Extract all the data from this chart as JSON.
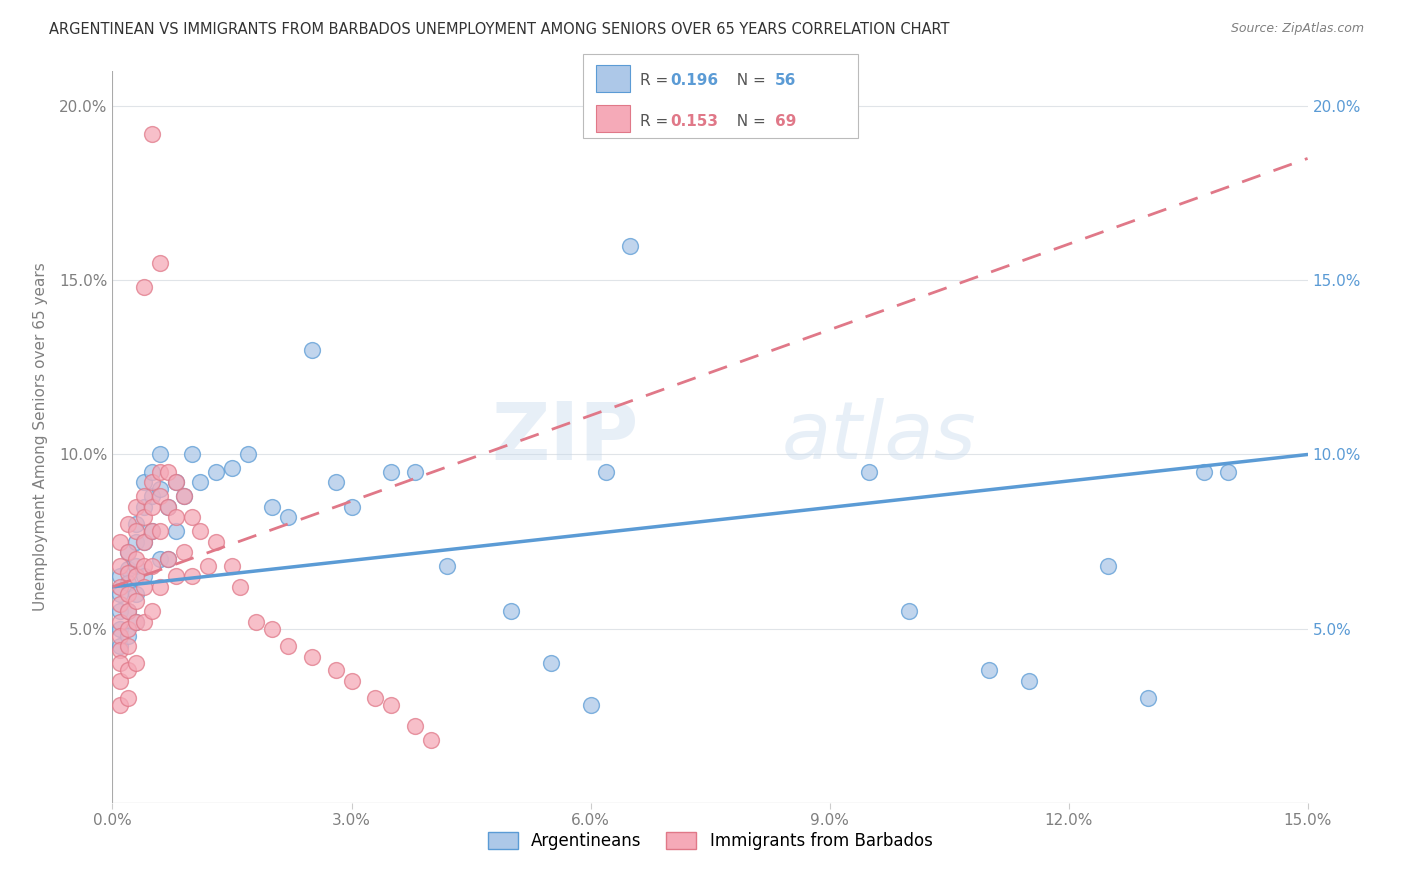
{
  "title": "ARGENTINEAN VS IMMIGRANTS FROM BARBADOS UNEMPLOYMENT AMONG SENIORS OVER 65 YEARS CORRELATION CHART",
  "source": "Source: ZipAtlas.com",
  "ylabel": "Unemployment Among Seniors over 65 years",
  "xlabel": "",
  "xlim": [
    0,
    0.15
  ],
  "ylim": [
    0,
    0.21
  ],
  "xtick_vals": [
    0.0,
    0.03,
    0.06,
    0.09,
    0.12,
    0.15
  ],
  "xtick_labels": [
    "0.0%",
    "3.0%",
    "6.0%",
    "9.0%",
    "12.0%",
    "15.0%"
  ],
  "ytick_vals": [
    0.0,
    0.05,
    0.1,
    0.15,
    0.2
  ],
  "ytick_labels_left": [
    "",
    "5.0%",
    "10.0%",
    "15.0%",
    "20.0%"
  ],
  "ytick_labels_right": [
    "",
    "5.0%",
    "10.0%",
    "15.0%",
    "20.0%"
  ],
  "legend_r_blue": "0.196",
  "legend_n_blue": "56",
  "legend_r_pink": "0.153",
  "legend_n_pink": "69",
  "legend_label_blue": "Argentineans",
  "legend_label_pink": "Immigrants from Barbados",
  "color_blue": "#adc8e8",
  "color_blue_line": "#5b9bd5",
  "color_pink": "#f5aab8",
  "color_pink_line": "#e07888",
  "watermark_zip": "ZIP",
  "watermark_atlas": "atlas",
  "background_color": "#ffffff",
  "grid_color": "#e0e4e8",
  "blue_trend_x0": 0.0,
  "blue_trend_y0": 0.062,
  "blue_trend_x1": 0.15,
  "blue_trend_y1": 0.1,
  "pink_trend_x0": 0.0,
  "pink_trend_y0": 0.062,
  "pink_trend_x1": 0.15,
  "pink_trend_y1": 0.185,
  "blue_points_x": [
    0.001,
    0.001,
    0.001,
    0.001,
    0.001,
    0.002,
    0.002,
    0.002,
    0.002,
    0.002,
    0.003,
    0.003,
    0.003,
    0.003,
    0.003,
    0.004,
    0.004,
    0.004,
    0.004,
    0.005,
    0.005,
    0.005,
    0.006,
    0.006,
    0.006,
    0.007,
    0.007,
    0.008,
    0.008,
    0.009,
    0.01,
    0.011,
    0.013,
    0.015,
    0.017,
    0.02,
    0.022,
    0.025,
    0.028,
    0.03,
    0.035,
    0.038,
    0.042,
    0.05,
    0.055,
    0.06,
    0.062,
    0.065,
    0.095,
    0.1,
    0.11,
    0.115,
    0.125,
    0.13,
    0.137,
    0.14
  ],
  "blue_points_y": [
    0.065,
    0.06,
    0.055,
    0.05,
    0.045,
    0.072,
    0.067,
    0.063,
    0.055,
    0.048,
    0.08,
    0.075,
    0.068,
    0.06,
    0.052,
    0.092,
    0.085,
    0.075,
    0.065,
    0.095,
    0.088,
    0.078,
    0.1,
    0.09,
    0.07,
    0.085,
    0.07,
    0.092,
    0.078,
    0.088,
    0.1,
    0.092,
    0.095,
    0.096,
    0.1,
    0.085,
    0.082,
    0.13,
    0.092,
    0.085,
    0.095,
    0.095,
    0.068,
    0.055,
    0.04,
    0.028,
    0.095,
    0.16,
    0.095,
    0.055,
    0.038,
    0.035,
    0.068,
    0.03,
    0.095,
    0.095
  ],
  "pink_points_x": [
    0.001,
    0.001,
    0.001,
    0.001,
    0.001,
    0.001,
    0.001,
    0.001,
    0.001,
    0.001,
    0.002,
    0.002,
    0.002,
    0.002,
    0.002,
    0.002,
    0.002,
    0.002,
    0.002,
    0.003,
    0.003,
    0.003,
    0.003,
    0.003,
    0.003,
    0.003,
    0.004,
    0.004,
    0.004,
    0.004,
    0.004,
    0.004,
    0.005,
    0.005,
    0.005,
    0.005,
    0.005,
    0.006,
    0.006,
    0.006,
    0.006,
    0.007,
    0.007,
    0.007,
    0.008,
    0.008,
    0.008,
    0.009,
    0.009,
    0.01,
    0.01,
    0.011,
    0.012,
    0.013,
    0.015,
    0.016,
    0.018,
    0.02,
    0.022,
    0.025,
    0.028,
    0.03,
    0.033,
    0.035,
    0.038,
    0.04,
    0.005,
    0.006,
    0.004
  ],
  "pink_points_y": [
    0.075,
    0.068,
    0.062,
    0.057,
    0.052,
    0.048,
    0.044,
    0.04,
    0.035,
    0.028,
    0.08,
    0.072,
    0.066,
    0.06,
    0.055,
    0.05,
    0.045,
    0.038,
    0.03,
    0.085,
    0.078,
    0.07,
    0.065,
    0.058,
    0.052,
    0.04,
    0.088,
    0.082,
    0.075,
    0.068,
    0.062,
    0.052,
    0.092,
    0.085,
    0.078,
    0.068,
    0.055,
    0.095,
    0.088,
    0.078,
    0.062,
    0.095,
    0.085,
    0.07,
    0.092,
    0.082,
    0.065,
    0.088,
    0.072,
    0.082,
    0.065,
    0.078,
    0.068,
    0.075,
    0.068,
    0.062,
    0.052,
    0.05,
    0.045,
    0.042,
    0.038,
    0.035,
    0.03,
    0.028,
    0.022,
    0.018,
    0.192,
    0.155,
    0.148
  ]
}
